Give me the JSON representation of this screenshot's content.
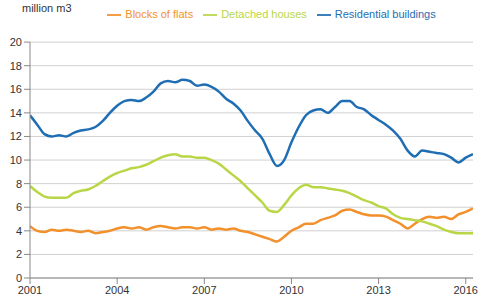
{
  "chart_data": {
    "type": "line",
    "y_label": "million m3",
    "x": [
      2001,
      2001.25,
      2001.5,
      2001.75,
      2002,
      2002.25,
      2002.5,
      2002.75,
      2003,
      2003.25,
      2003.5,
      2003.75,
      2004,
      2004.25,
      2004.5,
      2004.75,
      2005,
      2005.25,
      2005.5,
      2005.75,
      2006,
      2006.25,
      2006.5,
      2006.75,
      2007,
      2007.25,
      2007.5,
      2007.75,
      2008,
      2008.25,
      2008.5,
      2008.75,
      2009,
      2009.25,
      2009.5,
      2009.75,
      2010,
      2010.25,
      2010.5,
      2010.75,
      2011,
      2011.25,
      2011.5,
      2011.75,
      2012,
      2012.25,
      2012.5,
      2012.75,
      2013,
      2013.25,
      2013.5,
      2013.75,
      2014,
      2014.25,
      2014.5,
      2014.75,
      2015,
      2015.25,
      2015.5,
      2015.75,
      2016,
      2016.25
    ],
    "series": [
      {
        "name": "Residential buildings",
        "color": "#1f6db3",
        "values": [
          13.8,
          13.0,
          12.2,
          12.0,
          12.1,
          12.0,
          12.3,
          12.5,
          12.6,
          12.8,
          13.3,
          14.0,
          14.6,
          15.0,
          15.1,
          15.0,
          15.3,
          15.8,
          16.5,
          16.7,
          16.6,
          16.8,
          16.7,
          16.3,
          16.4,
          16.2,
          15.8,
          15.2,
          14.8,
          14.2,
          13.3,
          12.5,
          11.8,
          10.5,
          9.5,
          10.0,
          11.5,
          12.8,
          13.8,
          14.2,
          14.3,
          14.0,
          14.5,
          15.0,
          15.0,
          14.5,
          14.3,
          13.8,
          13.4,
          13.0,
          12.5,
          11.8,
          10.8,
          10.3,
          10.8,
          10.7,
          10.6,
          10.5,
          10.2,
          9.8,
          10.2,
          10.5
        ]
      },
      {
        "name": "Blocks of flats",
        "color": "#f2912c",
        "values": [
          4.4,
          4.0,
          3.9,
          4.1,
          4.0,
          4.1,
          4.0,
          3.9,
          4.0,
          3.8,
          3.9,
          4.0,
          4.2,
          4.3,
          4.2,
          4.3,
          4.1,
          4.3,
          4.4,
          4.3,
          4.2,
          4.3,
          4.3,
          4.2,
          4.3,
          4.1,
          4.2,
          4.1,
          4.2,
          4.0,
          3.9,
          3.7,
          3.5,
          3.3,
          3.1,
          3.5,
          4.0,
          4.3,
          4.6,
          4.6,
          4.9,
          5.1,
          5.3,
          5.7,
          5.8,
          5.6,
          5.4,
          5.3,
          5.3,
          5.2,
          4.9,
          4.6,
          4.2,
          4.6,
          5.0,
          5.2,
          5.1,
          5.2,
          5.0,
          5.4,
          5.6,
          5.9
        ]
      },
      {
        "name": "Detached houses",
        "color": "#b9d647",
        "values": [
          7.8,
          7.3,
          6.9,
          6.8,
          6.8,
          6.8,
          7.2,
          7.4,
          7.5,
          7.8,
          8.2,
          8.6,
          8.9,
          9.1,
          9.3,
          9.4,
          9.6,
          9.9,
          10.2,
          10.4,
          10.5,
          10.3,
          10.3,
          10.2,
          10.2,
          10.0,
          9.7,
          9.2,
          8.7,
          8.2,
          7.6,
          7.0,
          6.4,
          5.7,
          5.6,
          6.2,
          7.0,
          7.6,
          7.9,
          7.7,
          7.7,
          7.6,
          7.5,
          7.4,
          7.2,
          6.9,
          6.6,
          6.4,
          6.1,
          5.9,
          5.4,
          5.1,
          5.0,
          4.9,
          4.8,
          4.6,
          4.4,
          4.1,
          3.9,
          3.8,
          3.8,
          3.8
        ]
      }
    ],
    "xlim": [
      2001,
      2016.25
    ],
    "xticks": [
      2001,
      2004,
      2007,
      2010,
      2013,
      2016
    ],
    "ylim": [
      0,
      20
    ],
    "yticks": [
      0,
      2,
      4,
      6,
      8,
      10,
      12,
      14,
      16,
      18,
      20
    ],
    "grid": true,
    "legend": "top"
  }
}
